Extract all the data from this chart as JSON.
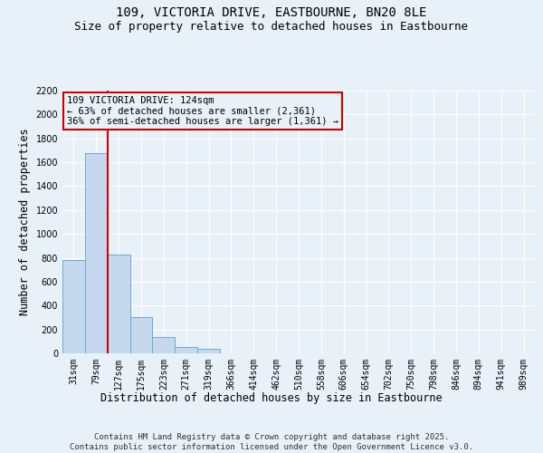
{
  "title_line1": "109, VICTORIA DRIVE, EASTBOURNE, BN20 8LE",
  "title_line2": "Size of property relative to detached houses in Eastbourne",
  "xlabel": "Distribution of detached houses by size in Eastbourne",
  "ylabel": "Number of detached properties",
  "categories": [
    "31sqm",
    "79sqm",
    "127sqm",
    "175sqm",
    "223sqm",
    "271sqm",
    "319sqm",
    "366sqm",
    "414sqm",
    "462sqm",
    "510sqm",
    "558sqm",
    "606sqm",
    "654sqm",
    "702sqm",
    "750sqm",
    "798sqm",
    "846sqm",
    "894sqm",
    "941sqm",
    "989sqm"
  ],
  "values": [
    780,
    1680,
    830,
    300,
    140,
    55,
    35,
    0,
    0,
    0,
    0,
    0,
    0,
    0,
    0,
    0,
    0,
    0,
    0,
    0,
    0
  ],
  "bar_color": "#c5d8ee",
  "bar_edgecolor": "#6aaad4",
  "vline_x": 1.5,
  "vline_color": "#cc0000",
  "ylim": [
    0,
    2200
  ],
  "yticks": [
    0,
    200,
    400,
    600,
    800,
    1000,
    1200,
    1400,
    1600,
    1800,
    2000,
    2200
  ],
  "annotation_title": "109 VICTORIA DRIVE: 124sqm",
  "annotation_line1": "← 63% of detached houses are smaller (2,361)",
  "annotation_line2": "36% of semi-detached houses are larger (1,361) →",
  "annotation_box_color": "#cc0000",
  "background_color": "#e8f0f8",
  "footer_line1": "Contains HM Land Registry data © Crown copyright and database right 2025.",
  "footer_line2": "Contains public sector information licensed under the Open Government Licence v3.0.",
  "title_fontsize": 10,
  "subtitle_fontsize": 9,
  "axis_label_fontsize": 8.5,
  "tick_fontsize": 7,
  "annotation_fontsize": 7.5,
  "footer_fontsize": 6.5
}
